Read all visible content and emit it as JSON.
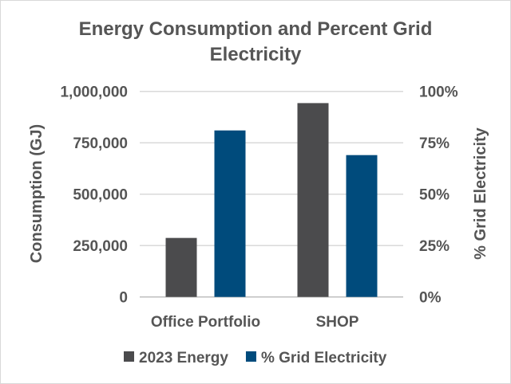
{
  "chart_data": {
    "type": "bar",
    "title_lines": [
      "Energy Consumption and Percent Grid",
      "Electricity"
    ],
    "categories": [
      "Office Portfolio",
      "SHOP"
    ],
    "series": [
      {
        "name": "2023 Energy",
        "axis": "left",
        "values": [
          287000,
          943000
        ],
        "color": "#4b4b4d"
      },
      {
        "name": "% Grid Electricity",
        "axis": "right",
        "values": [
          81,
          69
        ],
        "color": "#004b7c"
      }
    ],
    "ylabel": "Consumption  (GJ)",
    "y2label": "% Grid Electricity",
    "ylim": [
      0,
      1000000
    ],
    "y2lim": [
      0,
      100
    ],
    "yticks": [
      "0",
      "250,000",
      "500,000",
      "750,000",
      "1,000,000"
    ],
    "y2ticks": [
      "0%",
      "25%",
      "50%",
      "75%",
      "100%"
    ],
    "grid": true,
    "legend_position": "bottom"
  }
}
